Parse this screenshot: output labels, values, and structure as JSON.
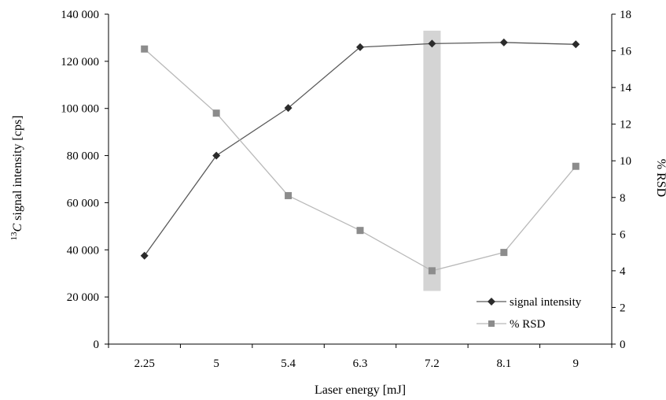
{
  "chart_data": {
    "type": "line",
    "xlabel": "Laser energy [mJ]",
    "ylabel_left_sup": "13",
    "ylabel_left_c": "C",
    "ylabel_left_rest": " signal intensity [cps]",
    "ylabel_right": "% RSD",
    "categories": [
      "2.25",
      "5",
      "5.4",
      "6.3",
      "7.2",
      "8.1",
      "9"
    ],
    "ylim_left": [
      0,
      140000
    ],
    "ylim_right": [
      0,
      18
    ],
    "yticks_left": [
      "0",
      "20 000",
      "40 000",
      "60 000",
      "80 000",
      "100 000",
      "120 000",
      "140 000"
    ],
    "yticks_right": [
      "0",
      "2",
      "4",
      "6",
      "8",
      "10",
      "12",
      "14",
      "16",
      "18"
    ],
    "highlight": {
      "category": "7.2",
      "y_range_right": [
        2.9,
        17.1
      ],
      "color": "#d4d4d4"
    },
    "series": [
      {
        "name": "signal intensity",
        "axis": "left",
        "marker": "diamond",
        "color": "#5a5a5a",
        "marker_color": "#2b2b2b",
        "values": [
          37500,
          80000,
          100200,
          126000,
          127500,
          128000,
          127200
        ]
      },
      {
        "name": "% RSD",
        "axis": "right",
        "marker": "square",
        "color": "#b9b9b9",
        "marker_color": "#8c8c8c",
        "values": [
          16.1,
          12.6,
          8.1,
          6.2,
          4.0,
          5.0,
          9.7
        ]
      }
    ],
    "legend_position": "bottom-right"
  }
}
